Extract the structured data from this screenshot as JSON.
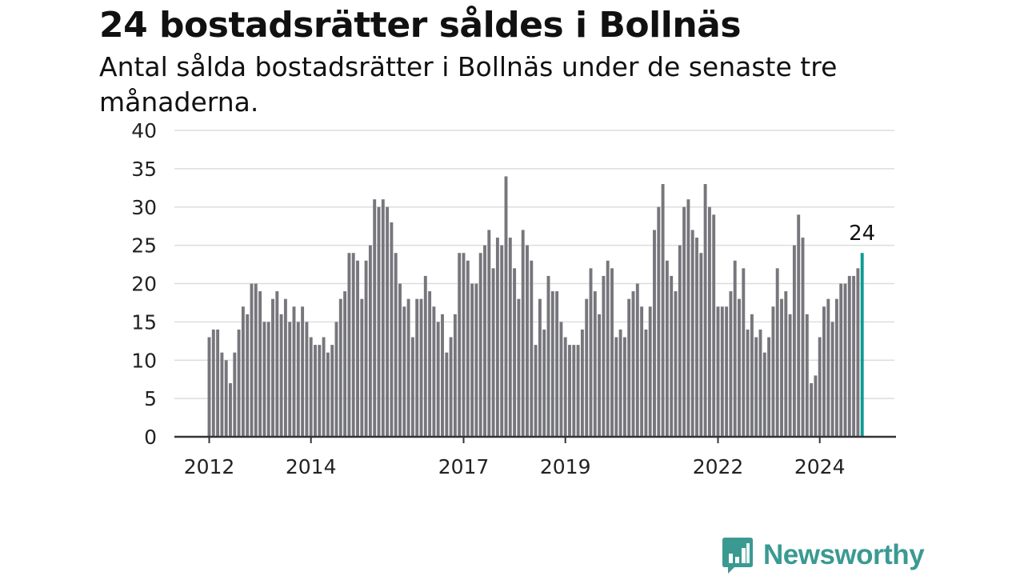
{
  "header": {
    "title": "24 bostadsrätter såldes i Bollnäs",
    "subtitle": "Antal sålda bostadsrätter i Bollnäs under de senaste tre månaderna."
  },
  "brand": {
    "name": "Newsworthy",
    "color": "#3a9a92",
    "icon": "bar-chart-speech-bubble-icon"
  },
  "colors": {
    "bar": "#76767c",
    "highlight": "#0c9c92",
    "grid": "#dddddd",
    "axis": "#333333"
  },
  "chart_data": {
    "type": "bar",
    "title": "24 bostadsrätter såldes i Bollnäs",
    "subtitle": "Antal sålda bostadsrätter i Bollnäs under de senaste tre månaderna.",
    "xlabel": "",
    "ylabel": "",
    "ylim": [
      0,
      40
    ],
    "yticks": [
      0,
      5,
      10,
      15,
      20,
      25,
      30,
      35,
      40
    ],
    "grid": true,
    "legend": "none",
    "first_month": "2012-01",
    "x_tick_labels": [
      {
        "label": "2012",
        "index": 0
      },
      {
        "label": "2014",
        "index": 24
      },
      {
        "label": "2017",
        "index": 60
      },
      {
        "label": "2019",
        "index": 84
      },
      {
        "label": "2022",
        "index": 120
      },
      {
        "label": "2024",
        "index": 144
      }
    ],
    "values": [
      13,
      14,
      14,
      11,
      10,
      7,
      11,
      14,
      17,
      16,
      20,
      20,
      19,
      15,
      15,
      18,
      19,
      16,
      18,
      15,
      17,
      15,
      17,
      15,
      13,
      12,
      12,
      13,
      11,
      12,
      15,
      18,
      19,
      24,
      24,
      23,
      18,
      23,
      25,
      31,
      30,
      31,
      30,
      28,
      24,
      20,
      17,
      18,
      13,
      18,
      18,
      21,
      19,
      17,
      15,
      16,
      11,
      13,
      16,
      24,
      24,
      23,
      20,
      20,
      24,
      25,
      27,
      22,
      26,
      25,
      34,
      26,
      22,
      18,
      27,
      25,
      23,
      12,
      18,
      14,
      21,
      19,
      19,
      15,
      13,
      12,
      12,
      12,
      14,
      18,
      22,
      19,
      16,
      21,
      23,
      22,
      13,
      14,
      13,
      18,
      19,
      20,
      17,
      14,
      17,
      27,
      30,
      33,
      23,
      21,
      19,
      25,
      30,
      31,
      27,
      26,
      24,
      33,
      30,
      29,
      17,
      17,
      17,
      19,
      23,
      18,
      22,
      14,
      16,
      13,
      14,
      11,
      13,
      17,
      22,
      18,
      19,
      16,
      25,
      29,
      26,
      16,
      7,
      8,
      13,
      17,
      18,
      15,
      18,
      20,
      20,
      21,
      21,
      22,
      24
    ],
    "highlight": {
      "index": 154,
      "value": 24,
      "label": "24"
    }
  }
}
